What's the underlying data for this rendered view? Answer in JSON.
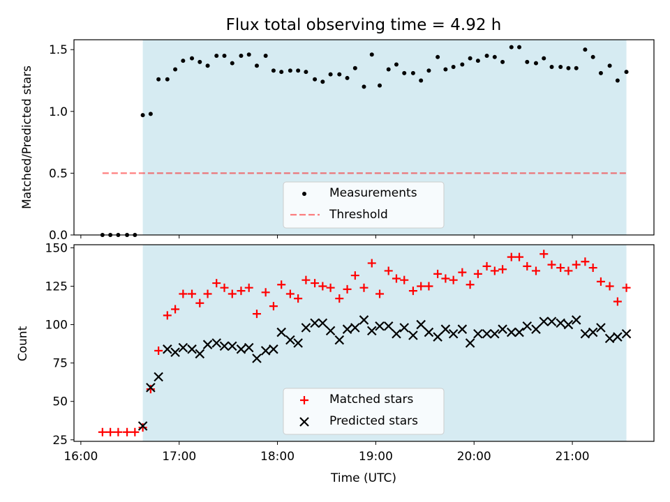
{
  "colors": {
    "shade": "#add8e6",
    "measurement": "#000000",
    "threshold": "#ff0000",
    "matched": "#ff0000",
    "predicted": "#000000"
  },
  "chart_data": [
    {
      "type": "scatter",
      "title": "Flux total observing time = 4.92 h",
      "xlabel": "",
      "ylabel": "Matched/Predicted stars",
      "xlim": [
        15.93,
        21.83
      ],
      "ylim": [
        0.0,
        1.58
      ],
      "yticks": [
        0.0,
        0.5,
        1.0,
        1.5
      ],
      "ytick_labels": [
        "0.0",
        "0.5",
        "1.0",
        "1.5"
      ],
      "shaded_region": {
        "x_start": 16.63,
        "x_end": 21.55
      },
      "threshold": {
        "y": 0.5,
        "x_start": 16.22,
        "x_end": 21.55
      },
      "legend": {
        "position": "lower center",
        "entries": [
          "Measurements",
          "Threshold"
        ]
      },
      "series": [
        {
          "name": "Measurements",
          "x": [
            16.22,
            16.3,
            16.38,
            16.47,
            16.55,
            16.63,
            16.71,
            16.79,
            16.88,
            16.96,
            17.04,
            17.13,
            17.21,
            17.29,
            17.38,
            17.46,
            17.54,
            17.63,
            17.71,
            17.79,
            17.88,
            17.96,
            18.04,
            18.13,
            18.21,
            18.29,
            18.38,
            18.46,
            18.54,
            18.63,
            18.71,
            18.79,
            18.88,
            18.96,
            19.04,
            19.13,
            19.21,
            19.29,
            19.38,
            19.46,
            19.54,
            19.63,
            19.71,
            19.79,
            19.88,
            19.96,
            20.04,
            20.13,
            20.21,
            20.29,
            20.38,
            20.46,
            20.54,
            20.63,
            20.71,
            20.79,
            20.88,
            20.96,
            21.04,
            21.13,
            21.21,
            21.29,
            21.38,
            21.46,
            21.55
          ],
          "y": [
            0.0,
            0.0,
            0.0,
            0.0,
            0.0,
            0.97,
            0.98,
            1.26,
            1.26,
            1.34,
            1.41,
            1.43,
            1.4,
            1.37,
            1.45,
            1.45,
            1.39,
            1.45,
            1.46,
            1.37,
            1.45,
            1.33,
            1.32,
            1.33,
            1.33,
            1.32,
            1.26,
            1.24,
            1.3,
            1.3,
            1.27,
            1.35,
            1.2,
            1.46,
            1.21,
            1.34,
            1.38,
            1.31,
            1.31,
            1.25,
            1.33,
            1.44,
            1.34,
            1.36,
            1.38,
            1.43,
            1.41,
            1.45,
            1.44,
            1.4,
            1.52,
            1.52,
            1.4,
            1.39,
            1.43,
            1.36,
            1.36,
            1.35,
            1.35,
            1.5,
            1.44,
            1.31,
            1.37,
            1.25,
            1.32
          ]
        }
      ]
    },
    {
      "type": "scatter",
      "title": "",
      "xlabel": "Time (UTC)",
      "ylabel": "Count",
      "xlim": [
        15.93,
        21.83
      ],
      "ylim": [
        24,
        152
      ],
      "yticks": [
        25,
        50,
        75,
        100,
        125,
        150
      ],
      "ytick_labels": [
        "25",
        "50",
        "75",
        "100",
        "125",
        "150"
      ],
      "xticks": [
        16,
        17,
        18,
        19,
        20,
        21
      ],
      "xtick_labels": [
        "16:00",
        "17:00",
        "18:00",
        "19:00",
        "20:00",
        "21:00"
      ],
      "shaded_region": {
        "x_start": 16.63,
        "x_end": 21.55
      },
      "legend": {
        "position": "lower center",
        "entries": [
          "Matched stars",
          "Predicted stars"
        ]
      },
      "series": [
        {
          "name": "Matched stars",
          "marker": "plus",
          "x": [
            16.22,
            16.3,
            16.38,
            16.47,
            16.55,
            16.63,
            16.71,
            16.79,
            16.88,
            16.96,
            17.04,
            17.13,
            17.21,
            17.29,
            17.38,
            17.46,
            17.54,
            17.63,
            17.71,
            17.79,
            17.88,
            17.96,
            18.04,
            18.13,
            18.21,
            18.29,
            18.38,
            18.46,
            18.54,
            18.63,
            18.71,
            18.79,
            18.88,
            18.96,
            19.04,
            19.13,
            19.21,
            19.29,
            19.38,
            19.46,
            19.54,
            19.63,
            19.71,
            19.79,
            19.88,
            19.96,
            20.04,
            20.13,
            20.21,
            20.29,
            20.38,
            20.46,
            20.54,
            20.63,
            20.71,
            20.79,
            20.88,
            20.96,
            21.04,
            21.13,
            21.21,
            21.29,
            21.38,
            21.46,
            21.55
          ],
          "y": [
            30,
            30,
            30,
            30,
            30,
            33,
            58,
            83,
            106,
            110,
            120,
            120,
            114,
            120,
            127,
            124,
            120,
            122,
            124,
            107,
            121,
            112,
            126,
            120,
            117,
            129,
            127,
            125,
            124,
            117,
            123,
            132,
            124,
            140,
            120,
            135,
            130,
            129,
            122,
            125,
            125,
            133,
            130,
            129,
            134,
            126,
            133,
            138,
            135,
            136,
            144,
            144,
            138,
            135,
            146,
            139,
            137,
            135,
            139,
            141,
            137,
            128,
            125,
            115,
            124
          ]
        },
        {
          "name": "Predicted stars",
          "marker": "x",
          "x": [
            16.63,
            16.71,
            16.79,
            16.88,
            16.96,
            17.04,
            17.13,
            17.21,
            17.29,
            17.38,
            17.46,
            17.54,
            17.63,
            17.71,
            17.79,
            17.88,
            17.96,
            18.04,
            18.13,
            18.21,
            18.29,
            18.38,
            18.46,
            18.54,
            18.63,
            18.71,
            18.79,
            18.88,
            18.96,
            19.04,
            19.13,
            19.21,
            19.29,
            19.38,
            19.46,
            19.54,
            19.63,
            19.71,
            19.79,
            19.88,
            19.96,
            20.04,
            20.13,
            20.21,
            20.29,
            20.38,
            20.46,
            20.54,
            20.63,
            20.71,
            20.79,
            20.88,
            20.96,
            21.04,
            21.13,
            21.21,
            21.29,
            21.38,
            21.46,
            21.55
          ],
          "y": [
            34,
            59,
            66,
            84,
            82,
            85,
            84,
            81,
            87,
            88,
            86,
            86,
            84,
            85,
            78,
            83,
            84,
            95,
            90,
            88,
            98,
            101,
            101,
            96,
            90,
            97,
            98,
            103,
            96,
            99,
            99,
            94,
            98,
            93,
            100,
            95,
            92,
            97,
            94,
            97,
            88,
            94,
            94,
            94,
            97,
            95,
            95,
            99,
            97,
            102,
            102,
            101,
            100,
            103,
            94,
            95,
            98,
            91,
            92,
            94
          ]
        }
      ]
    }
  ]
}
